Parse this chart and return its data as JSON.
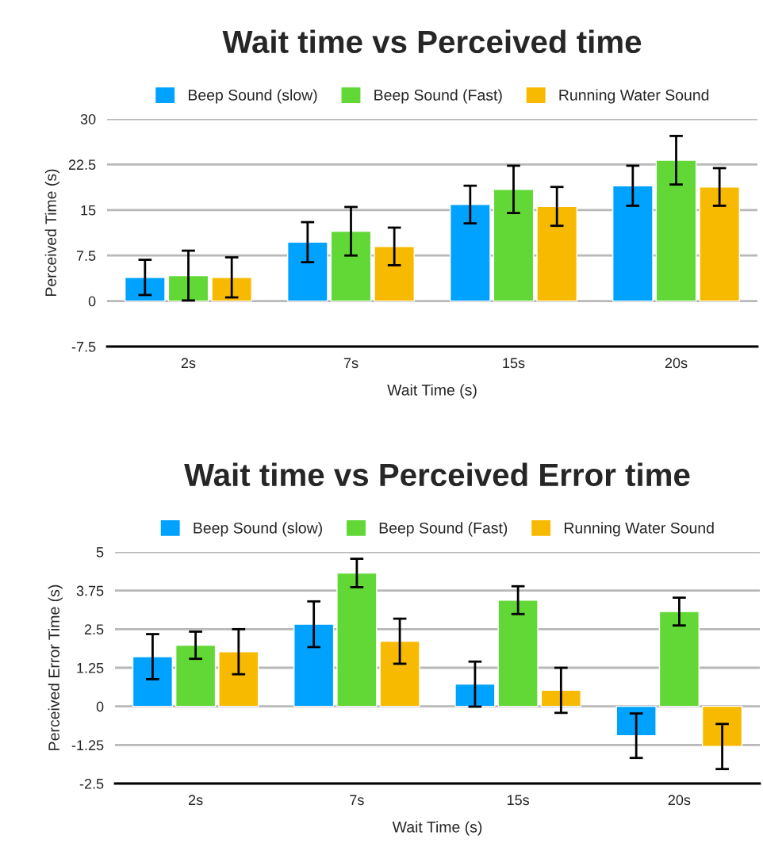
{
  "chart_data": [
    {
      "type": "bar",
      "title": "Wait time vs Perceived time",
      "xlabel": "Wait Time (s)",
      "ylabel": "Perceived Time (s)",
      "categories": [
        "2s",
        "7s",
        "15s",
        "20s"
      ],
      "series": [
        {
          "name": "Beep Sound (slow)",
          "color": "#00a2ff",
          "values": [
            3.9,
            9.7,
            15.9,
            19.0
          ],
          "errors": [
            2.9,
            3.3,
            3.1,
            3.3
          ]
        },
        {
          "name": "Beep Sound (Fast)",
          "color": "#61d836",
          "values": [
            4.2,
            11.5,
            18.4,
            23.2
          ],
          "errors": [
            4.1,
            4.0,
            3.9,
            4.0
          ]
        },
        {
          "name": "Running Water Sound",
          "color": "#f8ba00",
          "values": [
            3.9,
            9.0,
            15.6,
            18.8
          ],
          "errors": [
            3.3,
            3.1,
            3.2,
            3.1
          ]
        }
      ],
      "ylim": [
        -7.5,
        30
      ],
      "yticks": [
        -7.5,
        0,
        7.5,
        15,
        22.5,
        30
      ],
      "grid": "y",
      "legend": "top"
    },
    {
      "type": "bar",
      "title": "Wait time vs Perceived Error time",
      "xlabel": "Wait Time (s)",
      "ylabel": "Perceived Error Time (s)",
      "categories": [
        "2s",
        "7s",
        "15s",
        "20s"
      ],
      "series": [
        {
          "name": "Beep Sound (slow)",
          "color": "#00a2ff",
          "values": [
            1.61,
            2.66,
            0.72,
            -0.95
          ],
          "errors": [
            0.73,
            0.74,
            0.73,
            0.72
          ]
        },
        {
          "name": "Beep Sound (Fast)",
          "color": "#61d836",
          "values": [
            1.98,
            4.32,
            3.44,
            3.07
          ],
          "errors": [
            0.44,
            0.46,
            0.45,
            0.45
          ]
        },
        {
          "name": "Running Water Sound",
          "color": "#f8ba00",
          "values": [
            1.77,
            2.11,
            0.52,
            -1.3
          ],
          "errors": [
            0.73,
            0.73,
            0.73,
            0.73
          ]
        }
      ],
      "ylim": [
        -2.5,
        5
      ],
      "yticks": [
        -2.5,
        -1.25,
        0,
        1.25,
        2.5,
        3.75,
        5
      ],
      "grid": "y",
      "legend": "top"
    }
  ]
}
